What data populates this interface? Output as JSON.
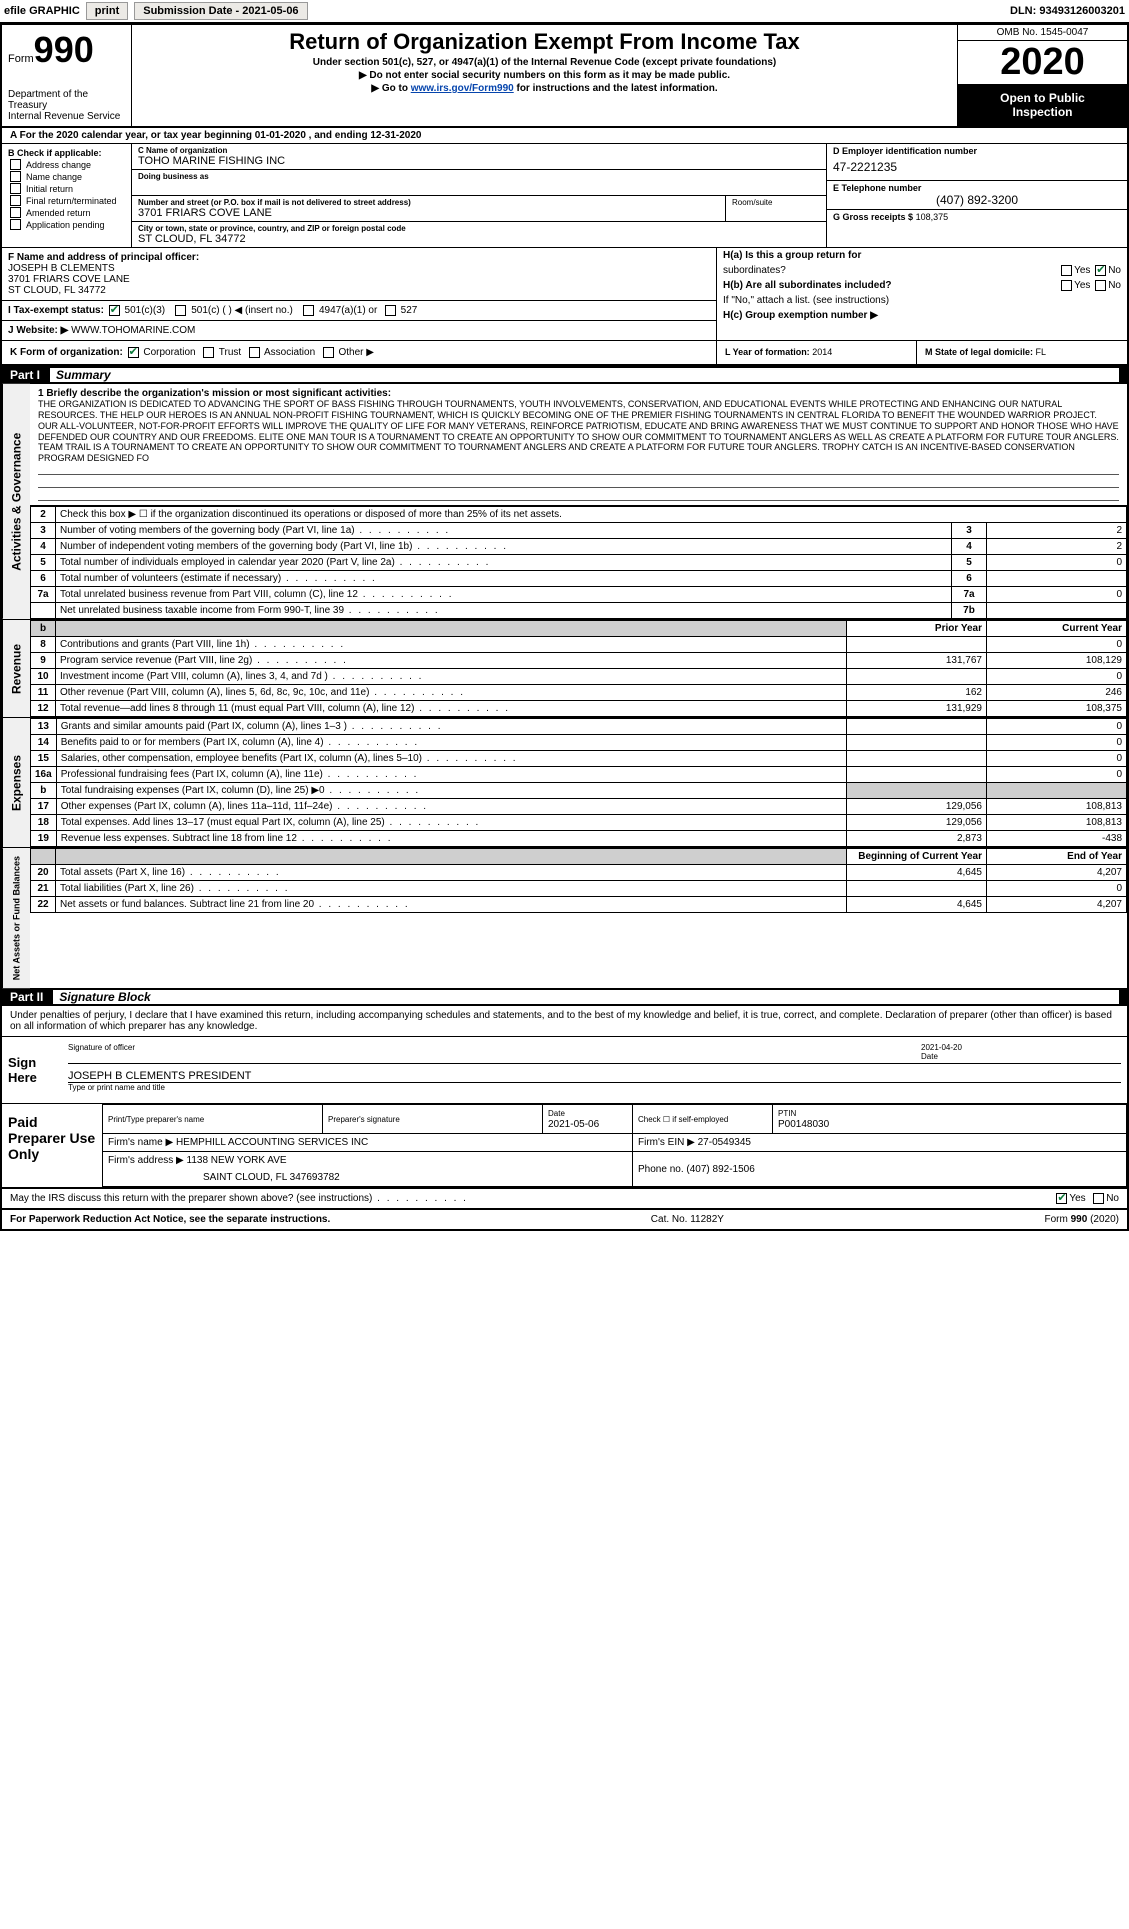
{
  "topbar": {
    "efile_label": "efile GRAPHIC",
    "print_label": "print",
    "submission_label": "Submission Date - ",
    "submission_date": "2021-05-06",
    "dln_label": "DLN: ",
    "dln": "93493126003201"
  },
  "header": {
    "form_label": "Form",
    "form_number": "990",
    "dept1": "Department of the Treasury",
    "dept2": "Internal Revenue Service",
    "title": "Return of Organization Exempt From Income Tax",
    "subtitle": "Under section 501(c), 527, or 4947(a)(1) of the Internal Revenue Code (except private foundations)",
    "note1": "▶ Do not enter social security numbers on this form as it may be made public.",
    "note2_pre": "▶ Go to ",
    "note2_link": "www.irs.gov/Form990",
    "note2_post": " for instructions and the latest information.",
    "omb": "OMB No. 1545-0047",
    "year": "2020",
    "open_public1": "Open to Public",
    "open_public2": "Inspection"
  },
  "period": {
    "text_pre": "A   For the 2020 calendar year, or tax year beginning ",
    "begin": "01-01-2020",
    "text_mid": " , and ending ",
    "end": "12-31-2020"
  },
  "boxB": {
    "header": "B Check if applicable:",
    "items": [
      "Address change",
      "Name change",
      "Initial return",
      "Final return/terminated",
      "Amended return",
      "Application pending"
    ]
  },
  "boxC": {
    "name_label": "C Name of organization",
    "name": "TOHO MARINE FISHING INC",
    "dba_label": "Doing business as",
    "street_label": "Number and street (or P.O. box if mail is not delivered to street address)",
    "street": "3701 FRIARS COVE LANE",
    "room_label": "Room/suite",
    "city_label": "City or town, state or province, country, and ZIP or foreign postal code",
    "city": "ST CLOUD, FL  34772"
  },
  "boxD": {
    "label": "D Employer identification number",
    "value": "47-2221235"
  },
  "boxE": {
    "label": "E Telephone number",
    "value": "(407) 892-3200"
  },
  "boxG": {
    "label": "G Gross receipts $",
    "value": "108,375"
  },
  "boxF": {
    "label": "F  Name and address of principal officer:",
    "name": "JOSEPH B CLEMENTS",
    "addr1": "3701 FRIARS COVE LANE",
    "addr2": "ST CLOUD, FL  34772"
  },
  "boxH": {
    "a1": "H(a)  Is this a group return for",
    "a2": "subordinates?",
    "b1": "H(b)  Are all subordinates included?",
    "b2": "If \"No,\" attach a list. (see instructions)",
    "c": "H(c)  Group exemption number ▶",
    "yes": "Yes",
    "no": "No"
  },
  "taxstatus": {
    "label": "I   Tax-exempt status:",
    "o1": "501(c)(3)",
    "o2_pre": "501(c) (  ) ◀ (insert no.)",
    "o3": "4947(a)(1) or",
    "o4": "527"
  },
  "website": {
    "label": "J   Website: ▶",
    "value": "WWW.TOHOMARINE.COM"
  },
  "formorg": {
    "label": "K Form of organization:",
    "options": [
      "Corporation",
      "Trust",
      "Association",
      "Other ▶"
    ]
  },
  "boxL": {
    "label": "L Year of formation:",
    "value": "2014"
  },
  "boxM": {
    "label": "M State of legal domicile:",
    "value": "FL"
  },
  "part1": {
    "num": "Part I",
    "title": "Summary"
  },
  "mission": {
    "lead": "1   Briefly describe the organization's mission or most significant activities:",
    "text": "THE ORGANIZATION IS DEDICATED TO ADVANCING THE SPORT OF BASS FISHING THROUGH TOURNAMENTS, YOUTH INVOLVEMENTS, CONSERVATION, AND EDUCATIONAL EVENTS WHILE PROTECTING AND ENHANCING OUR NATURAL RESOURCES. THE HELP OUR HEROES IS AN ANNUAL NON-PROFIT FISHING TOURNAMENT, WHICH IS QUICKLY BECOMING ONE OF THE PREMIER FISHING TOURNAMENTS IN CENTRAL FLORIDA TO BENEFIT THE WOUNDED WARRIOR PROJECT. OUR ALL-VOLUNTEER, NOT-FOR-PROFIT EFFORTS WILL IMPROVE THE QUALITY OF LIFE FOR MANY VETERANS, REINFORCE PATRIOTISM, EDUCATE AND BRING AWARENESS THAT WE MUST CONTINUE TO SUPPORT AND HONOR THOSE WHO HAVE DEFENDED OUR COUNTRY AND OUR FREEDOMS. ELITE ONE MAN TOUR IS A TOURNAMENT TO CREATE AN OPPORTUNITY TO SHOW OUR COMMITMENT TO TOURNAMENT ANGLERS AS WELL AS CREATE A PLATFORM FOR FUTURE TOUR ANGLERS. TEAM TRAIL IS A TOURNAMENT TO CREATE AN OPPORTUNITY TO SHOW OUR COMMITMENT TO TOURNAMENT ANGLERS AND CREATE A PLATFORM FOR FUTURE TOUR ANGLERS. TROPHY CATCH IS AN INCENTIVE-BASED CONSERVATION PROGRAM DESIGNED FO"
  },
  "lines_ag": {
    "l2": "Check this box ▶ ☐ if the organization discontinued its operations or disposed of more than 25% of its net assets.",
    "l3": {
      "d": "Number of voting members of the governing body (Part VI, line 1a)",
      "r": "3",
      "v": "2"
    },
    "l4": {
      "d": "Number of independent voting members of the governing body (Part VI, line 1b)",
      "r": "4",
      "v": "2"
    },
    "l5": {
      "d": "Total number of individuals employed in calendar year 2020 (Part V, line 2a)",
      "r": "5",
      "v": "0"
    },
    "l6": {
      "d": "Total number of volunteers (estimate if necessary)",
      "r": "6",
      "v": ""
    },
    "l7a": {
      "d": "Total unrelated business revenue from Part VIII, column (C), line 12",
      "r": "7a",
      "v": "0"
    },
    "l7b": {
      "d": "Net unrelated business taxable income from Form 990-T, line 39",
      "r": "7b",
      "v": ""
    }
  },
  "col_headers": {
    "prior": "Prior Year",
    "current": "Current Year",
    "boy": "Beginning of Current Year",
    "eoy": "End of Year"
  },
  "revenue": [
    {
      "n": "8",
      "d": "Contributions and grants (Part VIII, line 1h)",
      "p": "",
      "c": "0"
    },
    {
      "n": "9",
      "d": "Program service revenue (Part VIII, line 2g)",
      "p": "131,767",
      "c": "108,129"
    },
    {
      "n": "10",
      "d": "Investment income (Part VIII, column (A), lines 3, 4, and 7d )",
      "p": "",
      "c": "0"
    },
    {
      "n": "11",
      "d": "Other revenue (Part VIII, column (A), lines 5, 6d, 8c, 9c, 10c, and 11e)",
      "p": "162",
      "c": "246"
    },
    {
      "n": "12",
      "d": "Total revenue—add lines 8 through 11 (must equal Part VIII, column (A), line 12)",
      "p": "131,929",
      "c": "108,375"
    }
  ],
  "expenses": [
    {
      "n": "13",
      "d": "Grants and similar amounts paid (Part IX, column (A), lines 1–3 )",
      "p": "",
      "c": "0"
    },
    {
      "n": "14",
      "d": "Benefits paid to or for members (Part IX, column (A), line 4)",
      "p": "",
      "c": "0"
    },
    {
      "n": "15",
      "d": "Salaries, other compensation, employee benefits (Part IX, column (A), lines 5–10)",
      "p": "",
      "c": "0"
    },
    {
      "n": "16a",
      "d": "Professional fundraising fees (Part IX, column (A), line 11e)",
      "p": "",
      "c": "0"
    },
    {
      "n": "b",
      "d": "Total fundraising expenses (Part IX, column (D), line 25) ▶0",
      "p": "SHADE",
      "c": "SHADE"
    },
    {
      "n": "17",
      "d": "Other expenses (Part IX, column (A), lines 11a–11d, 11f–24e)",
      "p": "129,056",
      "c": "108,813"
    },
    {
      "n": "18",
      "d": "Total expenses. Add lines 13–17 (must equal Part IX, column (A), line 25)",
      "p": "129,056",
      "c": "108,813"
    },
    {
      "n": "19",
      "d": "Revenue less expenses. Subtract line 18 from line 12",
      "p": "2,873",
      "c": "-438"
    }
  ],
  "netassets": [
    {
      "n": "20",
      "d": "Total assets (Part X, line 16)",
      "p": "4,645",
      "c": "4,207"
    },
    {
      "n": "21",
      "d": "Total liabilities (Part X, line 26)",
      "p": "",
      "c": "0"
    },
    {
      "n": "22",
      "d": "Net assets or fund balances. Subtract line 21 from line 20",
      "p": "4,645",
      "c": "4,207"
    }
  ],
  "sidetabs": {
    "ag": "Activities & Governance",
    "rev": "Revenue",
    "exp": "Expenses",
    "na": "Net Assets or Fund Balances"
  },
  "part2": {
    "num": "Part II",
    "title": "Signature Block"
  },
  "sig": {
    "perjury": "Under penalties of perjury, I declare that I have examined this return, including accompanying schedules and statements, and to the best of my knowledge and belief, it is true, correct, and complete. Declaration of preparer (other than officer) is based on all information of which preparer has any knowledge.",
    "sign_here": "Sign Here",
    "officer_sig": "Signature of officer",
    "date_label": "Date",
    "date": "2021-04-20",
    "officer_name": "JOSEPH B CLEMENTS  PRESIDENT",
    "officer_title": "Type or print name and title"
  },
  "paid": {
    "title": "Paid Preparer Use Only",
    "h1": "Print/Type preparer's name",
    "h2": "Preparer's signature",
    "h3": "Date",
    "h3v": "2021-05-06",
    "h4_pre": "Check ☐ if self-employed",
    "h5_label": "PTIN",
    "h5": "P00148030",
    "firm_name_label": "Firm's name    ▶",
    "firm_name": "HEMPHILL ACCOUNTING SERVICES INC",
    "firm_ein_label": "Firm's EIN ▶",
    "firm_ein": "27-0549345",
    "firm_addr_label": "Firm's address ▶",
    "firm_addr1": "1138 NEW YORK AVE",
    "firm_addr2": "SAINT CLOUD, FL  347693782",
    "phone_label": "Phone no.",
    "phone": "(407) 892-1506"
  },
  "discuss": {
    "text": "May the IRS discuss this return with the preparer shown above? (see instructions)",
    "yes": "Yes",
    "no": "No"
  },
  "footer": {
    "left": "For Paperwork Reduction Act Notice, see the separate instructions.",
    "mid": "Cat. No. 11282Y",
    "right": "Form 990 (2020)"
  },
  "colors": {
    "header_bg": "#000000",
    "link": "#0645ad",
    "check": "#0a7a3a",
    "shade": "#cfcfcf"
  }
}
